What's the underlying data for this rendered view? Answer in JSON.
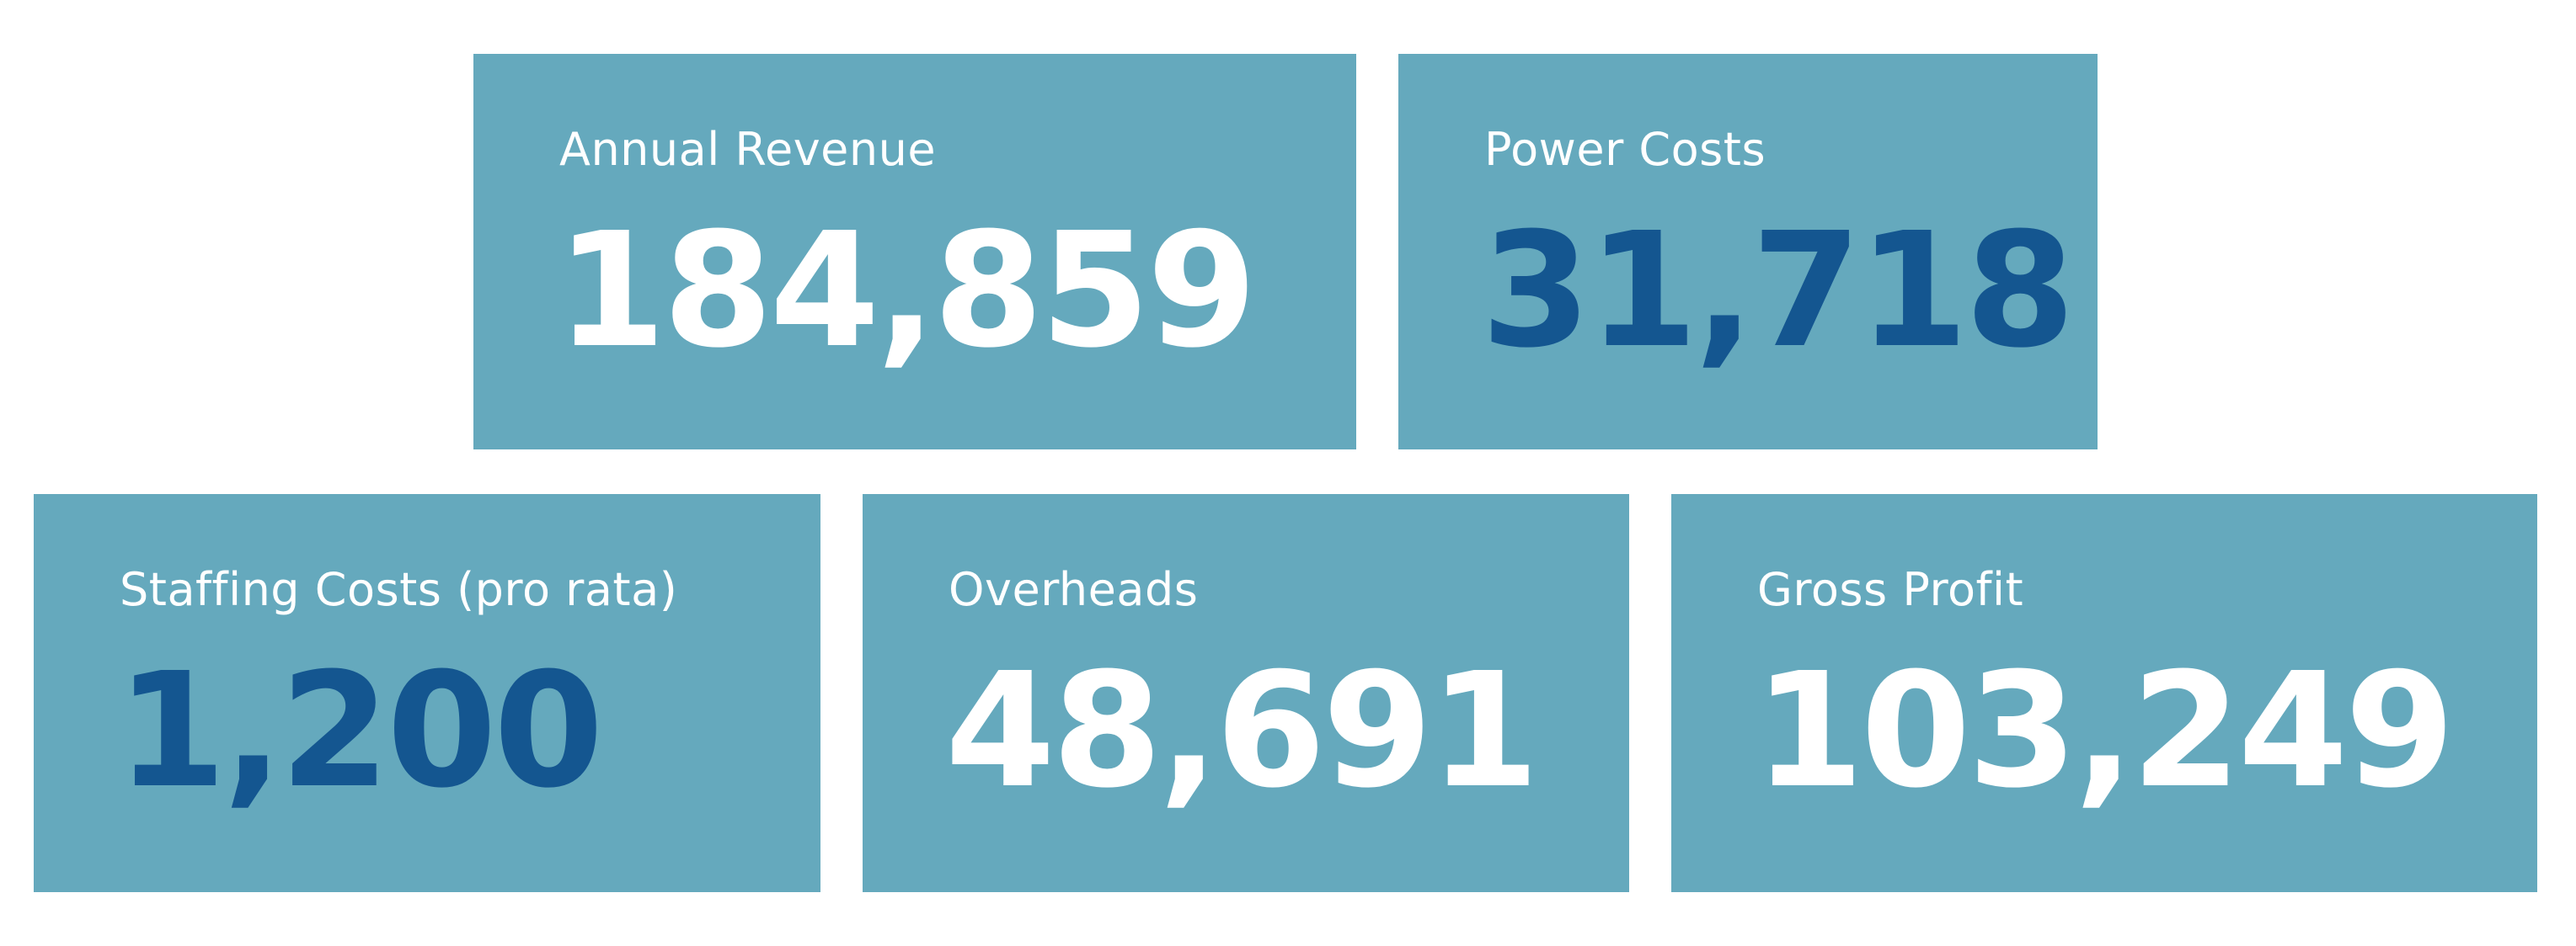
{
  "colors": {
    "card_background": "#65a9bd",
    "label_text": "#ffffff",
    "value_light": "#ffffff",
    "value_dark": "#145690"
  },
  "cards": [
    {
      "label": "Annual Revenue",
      "value": "184,859",
      "value_color": "#ffffff"
    },
    {
      "label": "Power Costs",
      "value": "31,718",
      "value_color": "#145690"
    },
    {
      "label": "Staffing Costs (pro rata)",
      "value": "1,200",
      "value_color": "#145690"
    },
    {
      "label": "Overheads",
      "value": "48,691",
      "value_color": "#ffffff"
    },
    {
      "label": "Gross Profit",
      "value": "103,249",
      "value_color": "#ffffff"
    }
  ]
}
